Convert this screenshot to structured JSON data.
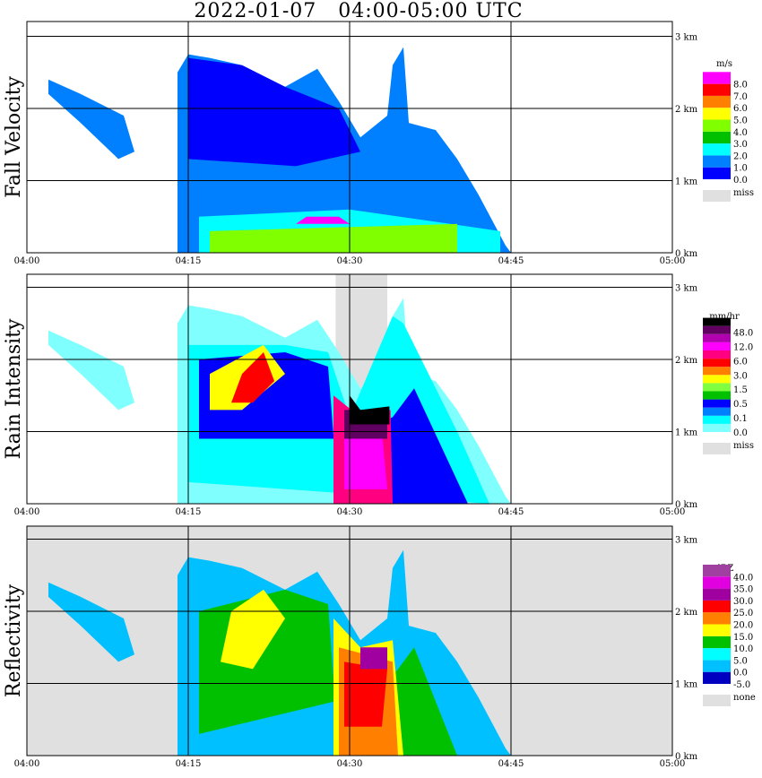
{
  "title": "2022-01-07   04:00-05:00 UTC",
  "chart_data": {
    "type": "heatmap",
    "title": "2022-01-07   04:00-05:00 UTC",
    "x_ticks": [
      "04:00",
      "04:15",
      "04:30",
      "04:45",
      "05:00"
    ],
    "y_ticks": [
      "0 km",
      "1 km",
      "2 km",
      "3 km"
    ],
    "xlim": [
      "04:00",
      "05:00"
    ],
    "ylim_km": [
      0,
      3
    ],
    "grid": true,
    "panels": [
      {
        "ylabel": "Fall Velocity",
        "unit": "m/s",
        "colors": [
          "#0000ff",
          "#0080ff",
          "#00ffff",
          "#00c000",
          "#80ff00",
          "#ffff00",
          "#ff8000",
          "#ff0000",
          "#ff00ff"
        ],
        "levels": [
          "0.0",
          "1.0",
          "2.0",
          "3.0",
          "4.0",
          "5.0",
          "6.0",
          "7.0",
          "8.0"
        ],
        "missing_label": "miss"
      },
      {
        "ylabel": "Rain Intensity",
        "unit": "mm/hr",
        "colors": [
          "#80ffff",
          "#00ffff",
          "#0080ff",
          "#0000ff",
          "#00c000",
          "#80ff40",
          "#ffff00",
          "#ff8000",
          "#ff0000",
          "#ff0080",
          "#ff00ff",
          "#b000b0",
          "#600060",
          "#000000"
        ],
        "levels": [
          "0.0",
          "0.1",
          "0.5",
          "1.5",
          "3.0",
          "6.0",
          "12.0",
          "48.0"
        ],
        "missing_label": "miss"
      },
      {
        "ylabel": "Reflectivity",
        "unit": "dBZ",
        "colors": [
          "#0000c0",
          "#00c0ff",
          "#00ffff",
          "#00c000",
          "#ffff00",
          "#ff8000",
          "#ff0000",
          "#a000a0",
          "#e000e0",
          "#a040a0"
        ],
        "levels": [
          "-5.0",
          "0.0",
          "5.0",
          "10.0",
          "15.0",
          "20.0",
          "25.0",
          "30.0",
          "35.0",
          "40.0"
        ],
        "missing_label": "none"
      }
    ]
  }
}
